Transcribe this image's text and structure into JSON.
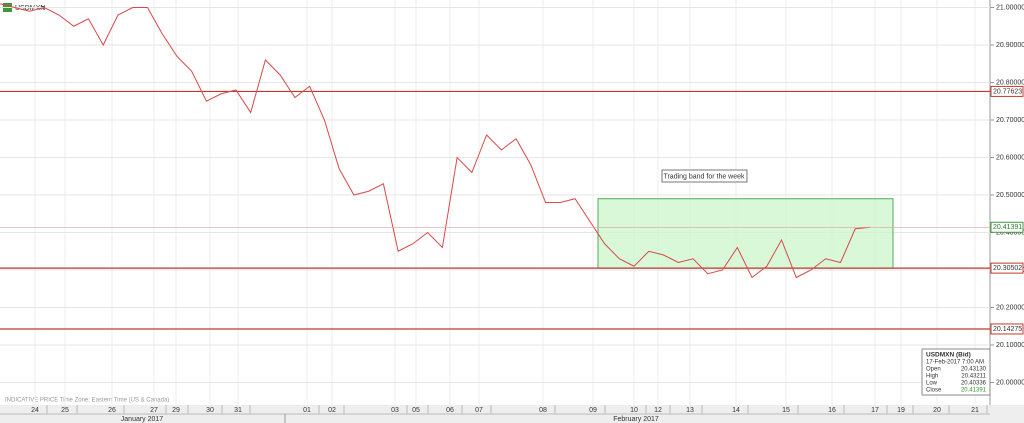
{
  "chart_data": {
    "type": "line",
    "symbol": "USDMXN",
    "footer_note": "INDICATIVE PRICE   Time Zone: Eastern Time (US & Canada)",
    "series": [
      {
        "name": "USDMXN",
        "color": "#d9484a",
        "values": [
          21.01,
          21.0,
          20.99,
          21.0,
          20.98,
          20.95,
          20.97,
          20.9,
          20.98,
          21.0,
          21.0,
          20.93,
          20.87,
          20.83,
          20.75,
          20.77,
          20.78,
          20.72,
          20.86,
          20.82,
          20.76,
          20.79,
          20.7,
          20.57,
          20.5,
          20.51,
          20.53,
          20.35,
          20.37,
          20.4,
          20.36,
          20.6,
          20.56,
          20.66,
          20.62,
          20.65,
          20.58,
          20.48,
          20.48,
          20.49,
          20.43,
          20.37,
          20.33,
          20.31,
          20.35,
          20.34,
          20.32,
          20.33,
          20.29,
          20.3,
          20.36,
          20.28,
          20.31,
          20.38,
          20.28,
          20.3,
          20.33,
          20.32,
          20.41,
          20.41391
        ]
      }
    ],
    "ylim": [
      19.94,
      21.02
    ],
    "yticks": [
      {
        "value": 21.0,
        "label": "21.00000"
      },
      {
        "value": 20.9,
        "label": "20.90000"
      },
      {
        "value": 20.8,
        "label": "20.80000"
      },
      {
        "value": 20.7,
        "label": "20.70000"
      },
      {
        "value": 20.6,
        "label": "20.60000"
      },
      {
        "value": 20.5,
        "label": "20.50000"
      },
      {
        "value": 20.4,
        "label": "20.40000"
      },
      {
        "value": 20.3,
        "label": "20.30000"
      },
      {
        "value": 20.2,
        "label": "20.20000"
      },
      {
        "value": 20.1,
        "label": "20.10000"
      },
      {
        "value": 20.0,
        "label": "20.00000"
      }
    ],
    "horizontal_lines": [
      20.77623,
      20.30502,
      20.14275
    ],
    "band": {
      "label": "Trading band for the week",
      "low": 20.30502,
      "high": 20.49
    },
    "x_tick_labels": [
      "24",
      "25",
      "26",
      "27",
      "29",
      "30",
      "31",
      "01",
      "02",
      "03",
      "05",
      "06",
      "07",
      "08",
      "09",
      "10",
      "12",
      "13",
      "14",
      "15",
      "16",
      "17",
      "19",
      "20",
      "21"
    ],
    "months": [
      "January 2017",
      "February 2017"
    ],
    "grid": true
  },
  "info_panel": {
    "title": "USDMXN (Bid)",
    "time": "17-Feb-2017 7:00 AM",
    "rows": [
      [
        "Open",
        "20.43130"
      ],
      [
        "High",
        "20.43211"
      ],
      [
        "Low",
        "20.40336"
      ],
      [
        "Close",
        "20.41391"
      ]
    ]
  }
}
